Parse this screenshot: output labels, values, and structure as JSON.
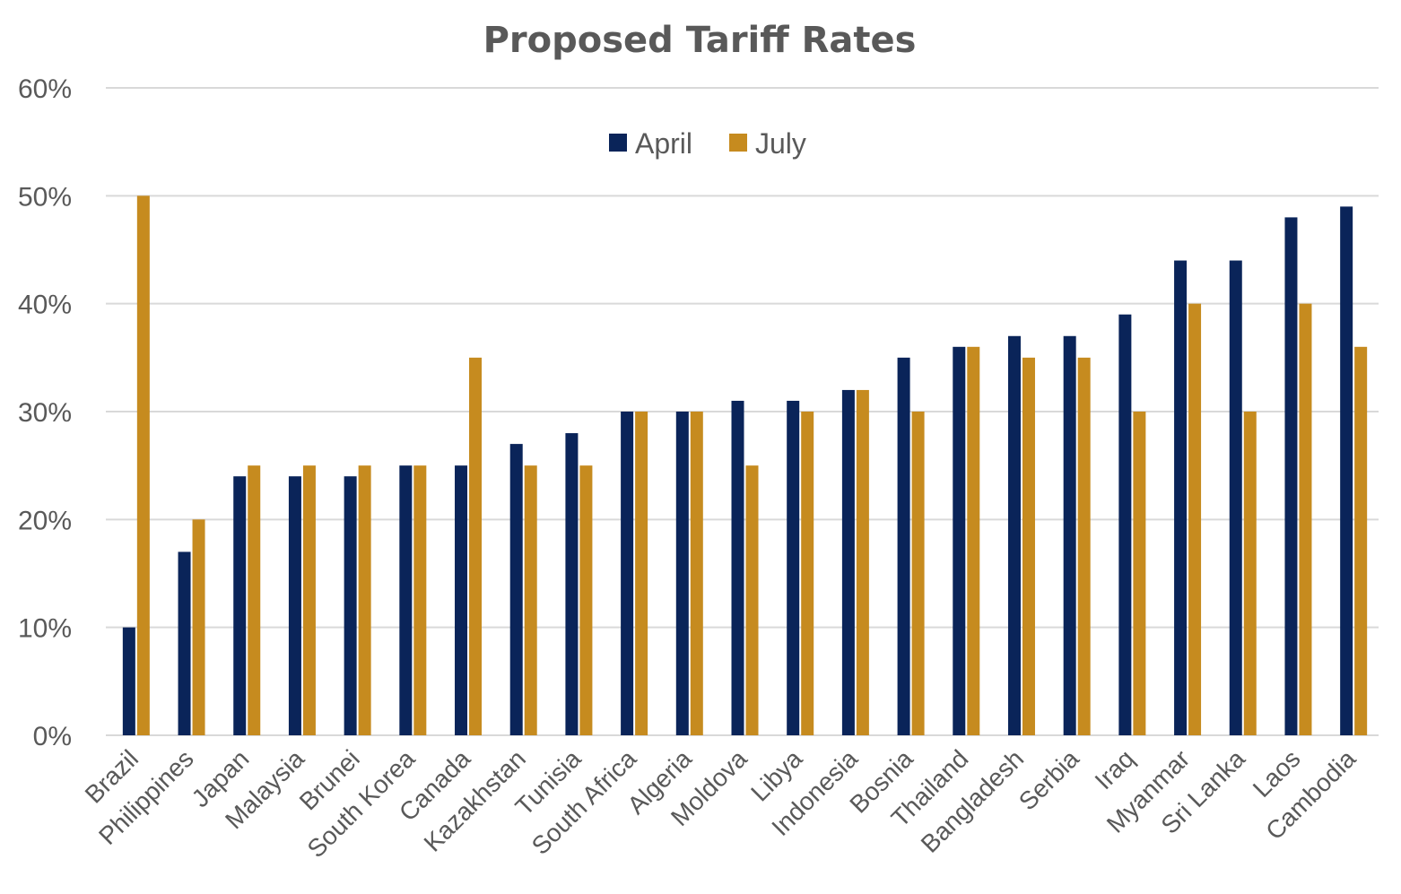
{
  "chart_data": {
    "type": "bar",
    "title": "Proposed Tariff Rates",
    "xlabel": "",
    "ylabel": "",
    "ylim": [
      0,
      60
    ],
    "yticks": [
      "0%",
      "10%",
      "20%",
      "30%",
      "40%",
      "50%",
      "60%"
    ],
    "grid": true,
    "legend_position": "top-center",
    "categories": [
      "Brazil",
      "Philippines",
      "Japan",
      "Malaysia",
      "Brunei",
      "South Korea",
      "Canada",
      "Kazakhstan",
      "Tunisia",
      "South Africa",
      "Algeria",
      "Moldova",
      "Libya",
      "Indonesia",
      "Bosnia",
      "Thailand",
      "Bangladesh",
      "Serbia",
      "Iraq",
      "Myanmar",
      "Sri Lanka",
      "Laos",
      "Cambodia"
    ],
    "series": [
      {
        "name": "April",
        "color": "#0a2459",
        "values": [
          10,
          17,
          24,
          24,
          24,
          25,
          25,
          27,
          28,
          30,
          30,
          31,
          31,
          32,
          35,
          36,
          37,
          37,
          39,
          44,
          44,
          48,
          49
        ]
      },
      {
        "name": "July",
        "color": "#c68b1f",
        "values": [
          50,
          20,
          25,
          25,
          25,
          25,
          35,
          25,
          25,
          30,
          30,
          25,
          30,
          32,
          30,
          36,
          35,
          35,
          30,
          40,
          30,
          40,
          36
        ]
      }
    ]
  }
}
